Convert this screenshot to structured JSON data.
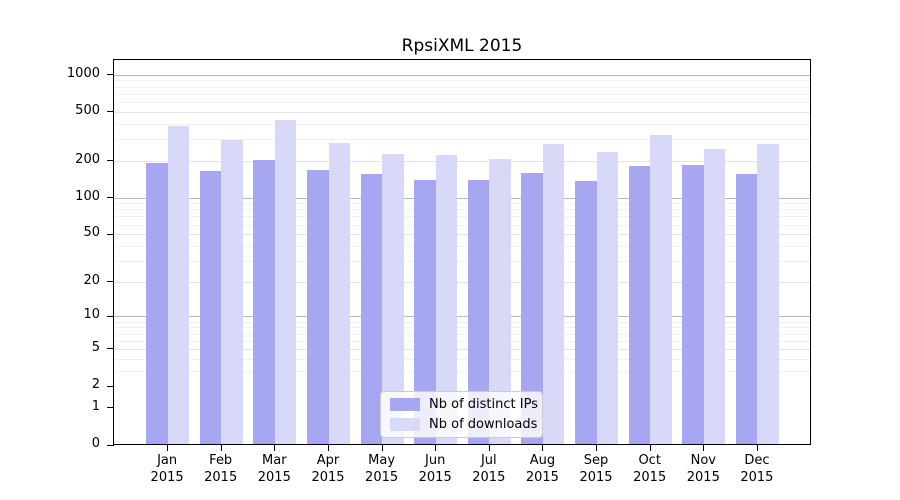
{
  "chart_data": {
    "type": "bar",
    "title": "RpsiXML 2015",
    "categories": [
      "Jan 2015",
      "Feb 2015",
      "Mar 2015",
      "Apr 2015",
      "May 2015",
      "Jun 2015",
      "Jul 2015",
      "Aug 2015",
      "Sep 2015",
      "Oct 2015",
      "Nov 2015",
      "Dec 2015"
    ],
    "series": [
      {
        "name": "Nb of distinct IPs",
        "color": "#a6a6f1",
        "values": [
          193,
          164,
          204,
          167,
          155,
          139,
          140,
          159,
          136,
          180,
          185,
          156
        ]
      },
      {
        "name": "Nb of downloads",
        "color": "#d8d8f8",
        "values": [
          380,
          292,
          431,
          280,
          228,
          221,
          207,
          273,
          235,
          325,
          250,
          275
        ]
      }
    ],
    "xlabel": "",
    "ylabel": "",
    "y_axis": {
      "scale": "log1p",
      "ticks": [
        0,
        1,
        2,
        5,
        10,
        20,
        50,
        100,
        200,
        500,
        1000
      ],
      "decade_ticks": [
        1,
        10,
        100,
        1000
      ],
      "ylim": [
        0,
        1200
      ],
      "grid": "on"
    },
    "legend": {
      "position": "lower center",
      "entries": [
        "Nb of distinct IPs",
        "Nb of downloads"
      ]
    },
    "style": {
      "grid_decade_color": "#b9b9b9",
      "grid_major_color": "#e3e3e3",
      "grid_minor_color": "#f0f0f0",
      "spine_color": "#000000",
      "text_color": "#000000",
      "background": "#ffffff"
    }
  }
}
